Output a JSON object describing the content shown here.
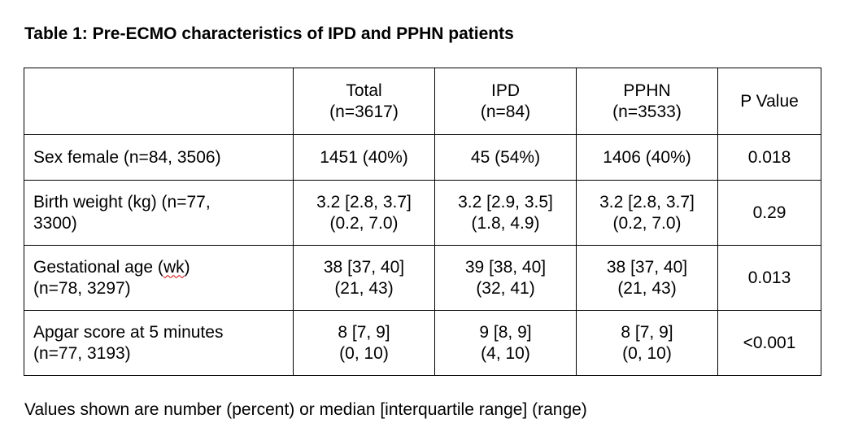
{
  "title": "Table 1: Pre-ECMO characteristics of IPD and PPHN patients",
  "table": {
    "headers": [
      {
        "line1": "",
        "line2": ""
      },
      {
        "line1": "Total",
        "line2": "(n=3617)"
      },
      {
        "line1": "IPD",
        "line2": "(n=84)"
      },
      {
        "line1": "PPHN",
        "line2": "(n=3533)"
      },
      {
        "line1": "P Value",
        "line2": ""
      }
    ],
    "rows": [
      {
        "label_line1": "Sex female (n=84, 3506)",
        "label_line2": "",
        "total": [
          "1451 (40%)",
          ""
        ],
        "ipd": [
          "45 (54%)",
          ""
        ],
        "pphn": [
          "1406 (40%)",
          ""
        ],
        "p_value": "0.018"
      },
      {
        "label_line1": "Birth weight (kg) (n=77,",
        "label_line2": "3300)",
        "total": [
          "3.2 [2.8, 3.7]",
          "(0.2, 7.0)"
        ],
        "ipd": [
          "3.2 [2.9, 3.5]",
          "(1.8, 4.9)"
        ],
        "pphn": [
          "3.2 [2.8, 3.7]",
          "(0.2, 7.0)"
        ],
        "p_value": "0.29"
      },
      {
        "label_line1_pre": "Gestational age (",
        "label_line1_wk": "wk",
        "label_line1_post": ")",
        "label_line2": "(n=78, 3297)",
        "total": [
          "38 [37, 40]",
          "(21, 43)"
        ],
        "ipd": [
          "39 [38, 40]",
          "(32, 41)"
        ],
        "pphn": [
          "38 [37, 40]",
          "(21, 43)"
        ],
        "p_value": "0.013"
      },
      {
        "label_line1": "Apgar score at 5 minutes",
        "label_line2": "(n=77, 3193)",
        "total": [
          "8 [7, 9]",
          "(0, 10)"
        ],
        "ipd": [
          "9 [8, 9]",
          "(4, 10)"
        ],
        "pphn": [
          "8 [7, 9]",
          "(0, 10)"
        ],
        "p_value": "<0.001"
      }
    ]
  },
  "footnote": "Values shown are number (percent) or median [interquartile range] (range)"
}
